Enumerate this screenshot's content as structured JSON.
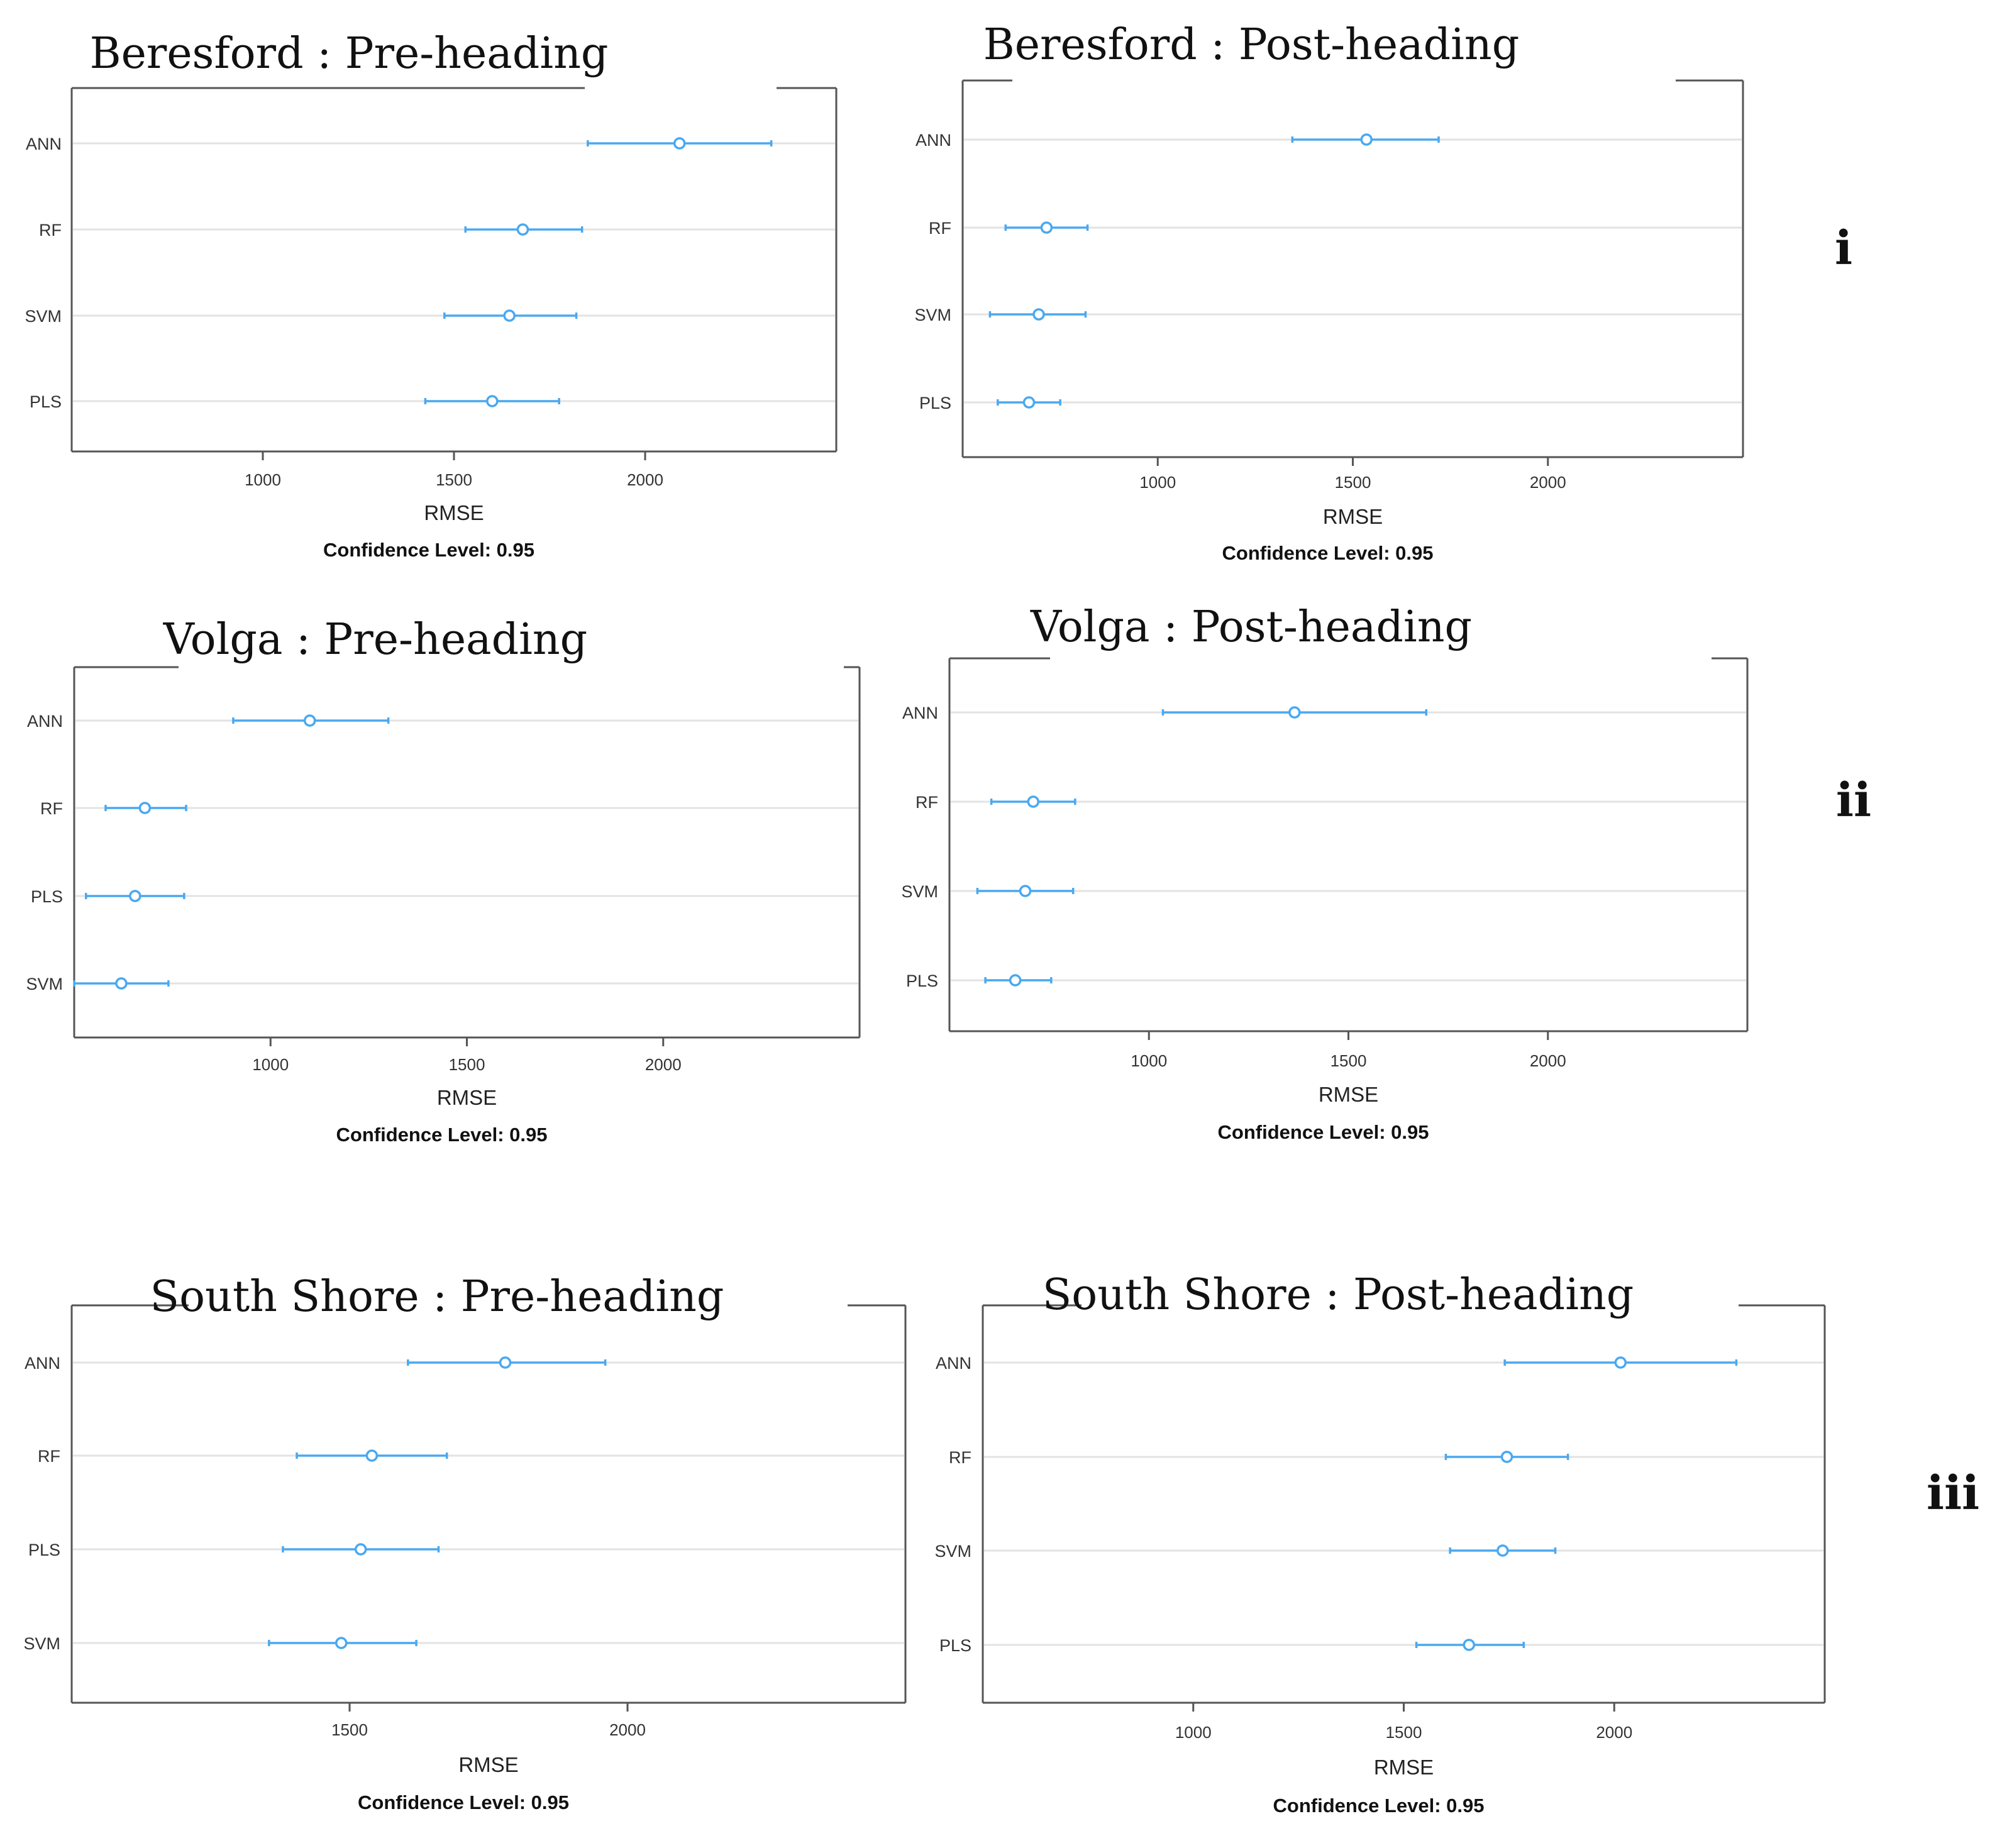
{
  "figure": {
    "confidence_label": "Confidence Level: 0.95",
    "row_labels": [
      "i",
      "ii",
      "iii"
    ]
  },
  "colors": {
    "series": "#4aa8f0",
    "axis": "#555555",
    "gridline": "#e3e3e3",
    "text": "#222222"
  },
  "chart_data": [
    {
      "type": "errorbar",
      "title": "Beresford : Pre-heading",
      "xlabel": "RMSE",
      "confidence": "Confidence Level: 0.95",
      "row": "i",
      "xlim": [
        500,
        2500
      ],
      "xticks": [
        1000,
        1500,
        2000
      ],
      "categories": [
        "ANN",
        "RF",
        "SVM",
        "PLS"
      ],
      "mean": [
        2090,
        1680,
        1645,
        1600
      ],
      "lower": [
        1850,
        1530,
        1475,
        1425
      ],
      "upper": [
        2330,
        1835,
        1820,
        1775
      ]
    },
    {
      "type": "errorbar",
      "title": "Beresford : Post-heading",
      "xlabel": "RMSE",
      "confidence": "Confidence Level: 0.95",
      "row": "i",
      "xlim": [
        500,
        2500
      ],
      "xticks": [
        1000,
        1500,
        2000
      ],
      "categories": [
        "ANN",
        "RF",
        "SVM",
        "PLS"
      ],
      "mean": [
        1535,
        715,
        695,
        670
      ],
      "lower": [
        1345,
        610,
        570,
        590
      ],
      "upper": [
        1720,
        820,
        815,
        750
      ]
    },
    {
      "type": "errorbar",
      "title": "Volga : Pre-heading",
      "xlabel": "RMSE",
      "confidence": "Confidence Level: 0.95",
      "row": "ii",
      "xlim": [
        500,
        2500
      ],
      "xticks": [
        1000,
        1500,
        2000
      ],
      "categories": [
        "ANN",
        "RF",
        "PLS",
        "SVM"
      ],
      "mean": [
        1100,
        680,
        655,
        620
      ],
      "lower": [
        905,
        580,
        530,
        500
      ],
      "upper": [
        1300,
        785,
        780,
        740
      ]
    },
    {
      "type": "errorbar",
      "title": "Volga : Post-heading",
      "xlabel": "RMSE",
      "confidence": "Confidence Level: 0.95",
      "row": "ii",
      "xlim": [
        500,
        2500
      ],
      "xticks": [
        1000,
        1500,
        2000
      ],
      "categories": [
        "ANN",
        "RF",
        "SVM",
        "PLS"
      ],
      "mean": [
        1365,
        710,
        690,
        665
      ],
      "lower": [
        1035,
        605,
        570,
        590
      ],
      "upper": [
        1695,
        815,
        810,
        755
      ]
    },
    {
      "type": "errorbar",
      "title": "South Shore : Pre-heading",
      "xlabel": "RMSE",
      "confidence": "Confidence Level: 0.95",
      "row": "iii",
      "xlim": [
        1000,
        2500
      ],
      "xticks": [
        1500,
        2000
      ],
      "categories": [
        "ANN",
        "RF",
        "PLS",
        "SVM"
      ],
      "mean": [
        1780,
        1540,
        1520,
        1485
      ],
      "lower": [
        1605,
        1405,
        1380,
        1355
      ],
      "upper": [
        1960,
        1675,
        1660,
        1620
      ]
    },
    {
      "type": "errorbar",
      "title": "South Shore : Post-heading",
      "xlabel": "RMSE",
      "confidence": "Confidence Level: 0.95",
      "row": "iii",
      "xlim": [
        500,
        2500
      ],
      "xticks": [
        1000,
        1500,
        2000
      ],
      "categories": [
        "ANN",
        "RF",
        "SVM",
        "PLS"
      ],
      "mean": [
        2015,
        1745,
        1735,
        1655
      ],
      "lower": [
        1740,
        1600,
        1610,
        1530
      ],
      "upper": [
        2290,
        1890,
        1860,
        1785
      ]
    }
  ]
}
